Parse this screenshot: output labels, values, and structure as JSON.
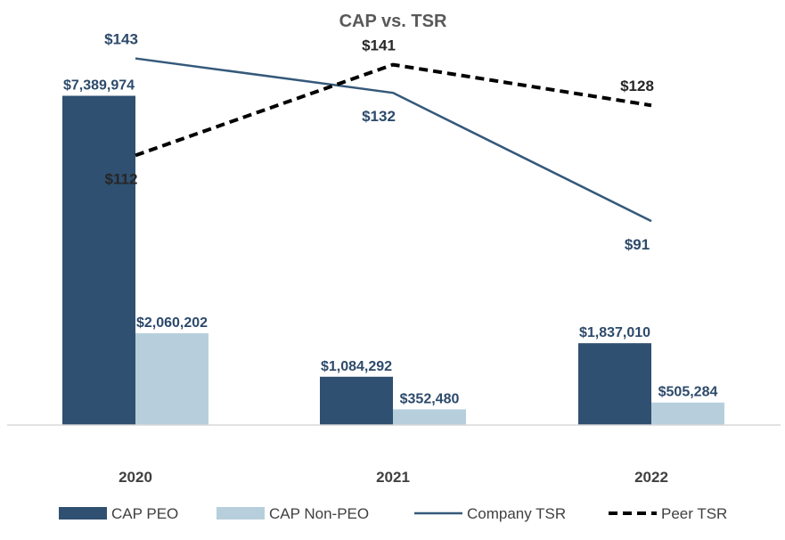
{
  "chart_data": {
    "type": "bar",
    "title": "CAP vs. TSR",
    "categories": [
      "2020",
      "2021",
      "2022"
    ],
    "series": [
      {
        "name": "CAP PEO",
        "kind": "bar",
        "color": "#2f5070",
        "values": [
          7389974,
          1084292,
          1837010
        ],
        "labels": [
          "$7,389,974",
          "$1,084,292",
          "$1,837,010"
        ]
      },
      {
        "name": "CAP Non-PEO",
        "kind": "bar",
        "color": "#b7cfdc",
        "values": [
          2060202,
          352480,
          505284
        ],
        "labels": [
          "$2,060,202",
          "$352,480",
          "$505,284"
        ]
      },
      {
        "name": "Company TSR",
        "kind": "line",
        "style": "solid",
        "color": "#35597a",
        "values": [
          143,
          132,
          91
        ],
        "labels": [
          "$143",
          "$132",
          "$91"
        ]
      },
      {
        "name": "Peer TSR",
        "kind": "line",
        "style": "dashed",
        "color": "#000000",
        "values": [
          112,
          141,
          128
        ],
        "labels": [
          "$112",
          "$141",
          "$128"
        ]
      }
    ],
    "ylim_bar": [
      0,
      8000000
    ],
    "ylim_line": [
      50,
      150
    ],
    "legend_position": "bottom",
    "grid": false
  }
}
